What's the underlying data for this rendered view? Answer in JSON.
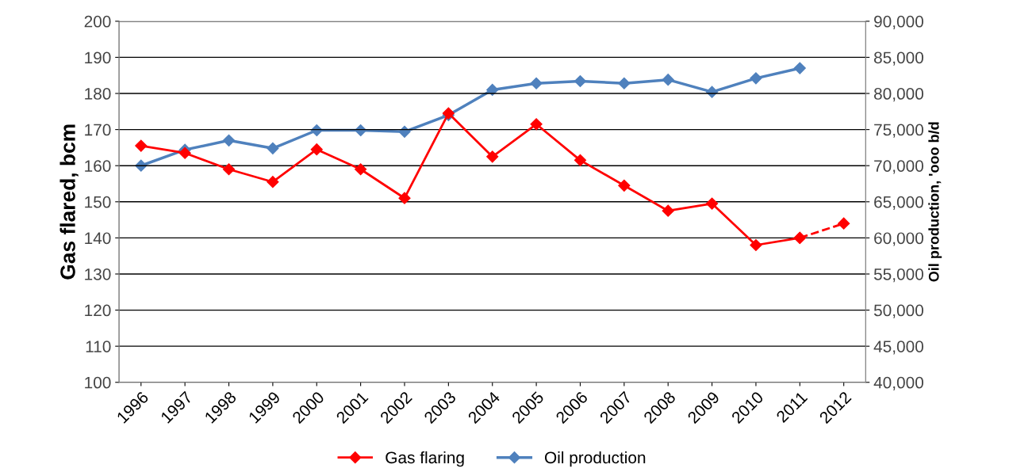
{
  "chart_data": {
    "type": "line",
    "ylabel": "Gas flared, bcm",
    "y2label": "Oil production, 'ooo b/d",
    "categories": [
      "1996",
      "1997",
      "1998",
      "1999",
      "2000",
      "2001",
      "2002",
      "2003",
      "2004",
      "2005",
      "2006",
      "2007",
      "2008",
      "2009",
      "2010",
      "2011",
      "2012"
    ],
    "series": [
      {
        "name": "Gas flaring",
        "color": "#ff0000",
        "values": [
          165.5,
          163.5,
          159,
          155.5,
          164.5,
          159,
          151,
          174.5,
          162.5,
          171.5,
          161.5,
          154.5,
          147.5,
          149.5,
          138,
          140,
          null
        ]
      },
      {
        "name": "Oil production",
        "color": "#4f81bd",
        "axis": "y2",
        "values": [
          70000,
          72200,
          73500,
          72400,
          74900,
          74900,
          74700,
          77000,
          80500,
          81400,
          81700,
          81400,
          81900,
          80200,
          82100,
          83500,
          null
        ]
      },
      {
        "color": "#ff0000",
        "line_style": "dashed",
        "values": [
          null,
          null,
          null,
          null,
          null,
          null,
          null,
          null,
          null,
          null,
          null,
          null,
          null,
          null,
          null,
          140,
          144
        ]
      }
    ],
    "ylim": [
      100,
      200
    ],
    "yticks": [
      100,
      110,
      120,
      130,
      140,
      150,
      160,
      170,
      180,
      190,
      200
    ],
    "y2lim": [
      40000,
      90000
    ],
    "y2ticks": [
      {
        "value": 40000,
        "label": "40,000"
      },
      {
        "value": 45000,
        "label": "45,000"
      },
      {
        "value": 50000,
        "label": "50,000"
      },
      {
        "value": 55000,
        "label": "55,000"
      },
      {
        "value": 60000,
        "label": "60,000"
      },
      {
        "value": 65000,
        "label": "65,000"
      },
      {
        "value": 70000,
        "label": "70,000"
      },
      {
        "value": 75000,
        "label": "75,000"
      },
      {
        "value": 80000,
        "label": "80,000"
      },
      {
        "value": 85000,
        "label": "85,000"
      },
      {
        "value": 90000,
        "label": "90,000"
      }
    ],
    "grid": "y",
    "legend": "bottom",
    "marker": "diamond",
    "line_style": "solid"
  }
}
